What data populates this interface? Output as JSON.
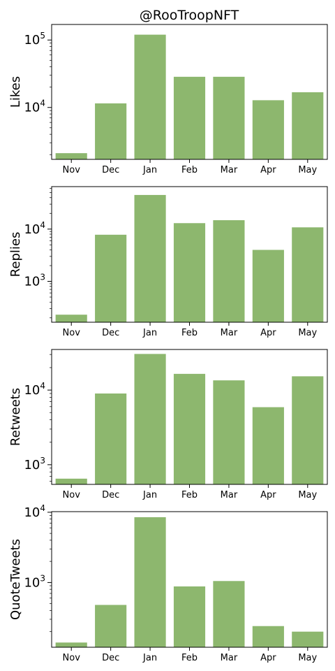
{
  "figure": {
    "title": "@RooTroopNFT",
    "bar_color": "#8db76e"
  },
  "chart_data": [
    {
      "type": "bar",
      "title": "@RooTroopNFT",
      "categories": [
        "Nov",
        "Dec",
        "Jan",
        "Feb",
        "Mar",
        "Apr",
        "May"
      ],
      "values": [
        2100,
        11500,
        120000,
        28500,
        28500,
        12800,
        16800
      ],
      "ylabel": "Likes",
      "yscale": "log",
      "ylim": [
        1700,
        170000
      ],
      "ytick_values": [
        10000,
        100000
      ],
      "yticks": [
        {
          "base": "10",
          "exp": "4"
        },
        {
          "base": "10",
          "exp": "5"
        }
      ]
    },
    {
      "type": "bar",
      "title": "",
      "categories": [
        "Nov",
        "Dec",
        "Jan",
        "Feb",
        "Mar",
        "Apr",
        "May"
      ],
      "values": [
        230,
        7800,
        45000,
        13000,
        14800,
        4000,
        10800
      ],
      "ylabel": "Replies",
      "yscale": "log",
      "ylim": [
        165,
        65000
      ],
      "ytick_values": [
        1000,
        10000
      ],
      "yticks": [
        {
          "base": "10",
          "exp": "3"
        },
        {
          "base": "10",
          "exp": "4"
        }
      ]
    },
    {
      "type": "bar",
      "title": "",
      "categories": [
        "Nov",
        "Dec",
        "Jan",
        "Feb",
        "Mar",
        "Apr",
        "May"
      ],
      "values": [
        650,
        9000,
        30500,
        16500,
        13500,
        5900,
        15300
      ],
      "ylabel": "Retweets",
      "yscale": "log",
      "ylim": [
        545,
        35000
      ],
      "ytick_values": [
        1000,
        10000
      ],
      "yticks": [
        {
          "base": "10",
          "exp": "3"
        },
        {
          "base": "10",
          "exp": "4"
        }
      ]
    },
    {
      "type": "bar",
      "title": "",
      "categories": [
        "Nov",
        "Dec",
        "Jan",
        "Feb",
        "Mar",
        "Apr",
        "May"
      ],
      "values": [
        140,
        480,
        8500,
        880,
        1050,
        240,
        200
      ],
      "ylabel": "QuoteTweets",
      "yscale": "log",
      "ylim": [
        120,
        10200
      ],
      "ytick_values": [
        1000,
        10000
      ],
      "yticks": [
        {
          "base": "10",
          "exp": "3"
        },
        {
          "base": "10",
          "exp": "4"
        }
      ]
    }
  ]
}
